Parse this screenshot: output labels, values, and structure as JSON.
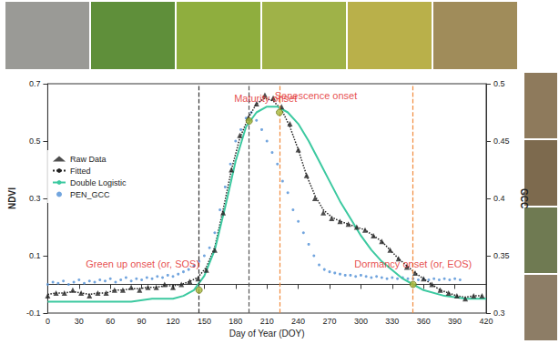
{
  "chart_data": {
    "type": "line",
    "x_label": "Day of Year (DOY)",
    "y_label": "NDVI",
    "y2_label": "GCC",
    "xlim": [
      0,
      420
    ],
    "xticks": [
      0,
      30,
      60,
      90,
      120,
      150,
      180,
      210,
      240,
      270,
      300,
      330,
      360,
      390,
      420
    ],
    "ylim": [
      -0.1,
      0.7
    ],
    "yticks": [
      -0.1,
      0.1,
      0.3,
      0.5,
      0.7
    ],
    "y2lim": [
      0.3,
      0.5
    ],
    "y2ticks": [
      0.3,
      0.35,
      0.4,
      0.45,
      0.5
    ],
    "grid": false,
    "legend": "left",
    "series": [
      {
        "name": "Raw Data",
        "type": "scatter",
        "marker": "triangle",
        "color": "#222222",
        "x": [
          0,
          8,
          16,
          24,
          32,
          40,
          48,
          56,
          64,
          72,
          80,
          88,
          96,
          104,
          112,
          120,
          128,
          136,
          144,
          152,
          160,
          168,
          176,
          184,
          192,
          200,
          208,
          216,
          224,
          232,
          240,
          248,
          256,
          264,
          272,
          280,
          288,
          296,
          304,
          312,
          320,
          328,
          336,
          344,
          352,
          360,
          368,
          376,
          384,
          392,
          400,
          408,
          416
        ],
        "values": [
          -0.04,
          -0.03,
          -0.03,
          -0.02,
          -0.03,
          -0.04,
          -0.03,
          -0.03,
          -0.02,
          -0.02,
          -0.01,
          -0.02,
          -0.01,
          -0.01,
          0,
          -0.01,
          0,
          0.01,
          0.02,
          0.05,
          0.12,
          0.25,
          0.4,
          0.52,
          0.58,
          0.63,
          0.66,
          0.65,
          0.62,
          0.56,
          0.47,
          0.38,
          0.3,
          0.25,
          0.23,
          0.22,
          0.21,
          0.2,
          0.19,
          0.17,
          0.15,
          0.12,
          0.09,
          0.06,
          0.04,
          0.02,
          0,
          -0.02,
          -0.03,
          -0.04,
          -0.05,
          -0.04,
          -0.04
        ]
      },
      {
        "name": "Fitted",
        "type": "line",
        "line_style": "dotted",
        "color": "#222222",
        "x": [
          0,
          8,
          16,
          24,
          32,
          40,
          48,
          56,
          64,
          72,
          80,
          88,
          96,
          104,
          112,
          120,
          128,
          136,
          144,
          152,
          160,
          168,
          176,
          184,
          192,
          200,
          208,
          216,
          224,
          232,
          240,
          248,
          256,
          264,
          272,
          280,
          288,
          296,
          304,
          312,
          320,
          328,
          336,
          344,
          352,
          360,
          368,
          376,
          384,
          392,
          400,
          408,
          416
        ],
        "values": [
          -0.035,
          -0.03,
          -0.03,
          -0.025,
          -0.03,
          -0.035,
          -0.03,
          -0.03,
          -0.02,
          -0.02,
          -0.015,
          -0.015,
          -0.01,
          -0.01,
          -0.005,
          -0.005,
          0,
          0.01,
          0.025,
          0.06,
          0.13,
          0.26,
          0.4,
          0.51,
          0.58,
          0.63,
          0.65,
          0.64,
          0.61,
          0.55,
          0.47,
          0.38,
          0.31,
          0.26,
          0.235,
          0.22,
          0.21,
          0.2,
          0.19,
          0.17,
          0.15,
          0.12,
          0.09,
          0.065,
          0.04,
          0.02,
          0,
          -0.02,
          -0.03,
          -0.04,
          -0.045,
          -0.04,
          -0.04
        ]
      },
      {
        "name": "Double Logistic",
        "type": "line",
        "line_style": "solid",
        "color": "#3cc9a0",
        "x": [
          0,
          20,
          40,
          60,
          80,
          100,
          120,
          130,
          140,
          150,
          160,
          170,
          180,
          190,
          200,
          210,
          220,
          230,
          240,
          250,
          260,
          270,
          280,
          290,
          300,
          310,
          320,
          330,
          340,
          350,
          360,
          380,
          400,
          420
        ],
        "values": [
          -0.06,
          -0.06,
          -0.06,
          -0.06,
          -0.06,
          -0.05,
          -0.05,
          -0.04,
          -0.02,
          0.03,
          0.12,
          0.27,
          0.43,
          0.55,
          0.6,
          0.62,
          0.62,
          0.6,
          0.56,
          0.5,
          0.43,
          0.36,
          0.29,
          0.23,
          0.17,
          0.12,
          0.08,
          0.05,
          0.02,
          0,
          -0.02,
          -0.04,
          -0.05,
          -0.05
        ]
      },
      {
        "name": "PEN_GCC",
        "type": "scatter",
        "marker": "circle",
        "color": "#4f8fd6",
        "axis": "y2",
        "x": [
          0,
          5,
          10,
          15,
          20,
          25,
          30,
          35,
          40,
          45,
          50,
          55,
          60,
          65,
          70,
          75,
          80,
          85,
          90,
          95,
          100,
          105,
          110,
          115,
          120,
          125,
          130,
          135,
          140,
          145,
          150,
          155,
          160,
          165,
          170,
          175,
          180,
          185,
          190,
          195,
          200,
          205,
          210,
          215,
          220,
          225,
          230,
          235,
          240,
          245,
          250,
          255,
          260,
          265,
          270,
          275,
          280,
          285,
          290,
          295,
          300,
          305,
          310,
          315,
          320,
          325,
          330,
          335,
          340,
          345,
          350,
          355,
          360,
          365,
          370,
          375,
          380,
          385,
          390,
          395
        ],
        "values": [
          0.325,
          0.327,
          0.326,
          0.328,
          0.325,
          0.327,
          0.329,
          0.326,
          0.328,
          0.327,
          0.329,
          0.328,
          0.33,
          0.327,
          0.329,
          0.331,
          0.328,
          0.33,
          0.329,
          0.331,
          0.33,
          0.332,
          0.331,
          0.333,
          0.332,
          0.334,
          0.336,
          0.338,
          0.341,
          0.345,
          0.35,
          0.357,
          0.37,
          0.39,
          0.41,
          0.43,
          0.45,
          0.46,
          0.47,
          0.475,
          0.468,
          0.46,
          0.45,
          0.44,
          0.43,
          0.415,
          0.405,
          0.39,
          0.38,
          0.37,
          0.36,
          0.35,
          0.342,
          0.338,
          0.336,
          0.335,
          0.334,
          0.333,
          0.333,
          0.332,
          0.333,
          0.332,
          0.331,
          0.332,
          0.331,
          0.33,
          0.331,
          0.33,
          0.331,
          0.33,
          0.33,
          0.329,
          0.33,
          0.329,
          0.33,
          0.329,
          0.33,
          0.329,
          0.33,
          0.329
        ]
      }
    ],
    "annotations": [
      {
        "text": "Green up onset (or, SOS)",
        "x": 145,
        "y": -0.02,
        "color": "#333333",
        "marker": "circle"
      },
      {
        "text": "Maturity onset",
        "x": 193,
        "y": 0.57,
        "color": "#555555",
        "marker": "circle"
      },
      {
        "text": "Senescence onset",
        "x": 222,
        "y": 0.6,
        "color": "#f08a3c",
        "marker": "circle"
      },
      {
        "text": "Dormancy onset (or, EOS)",
        "x": 350,
        "y": 0.0,
        "color": "#f08a3c",
        "marker": "circle"
      }
    ]
  }
}
